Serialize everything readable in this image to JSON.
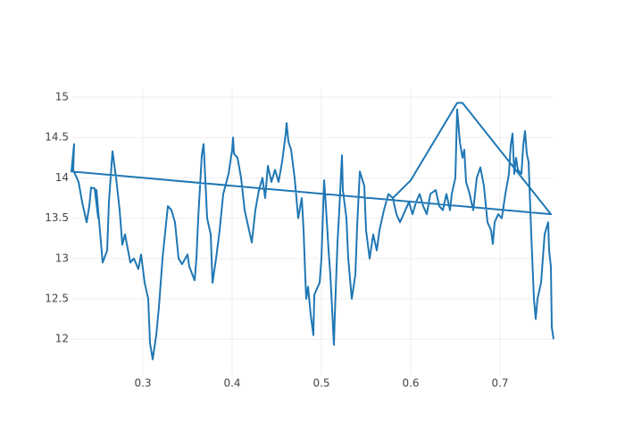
{
  "chart_data": {
    "type": "line",
    "color": "#1f77b4",
    "grid": true,
    "xlim": [
      0.22,
      0.76
    ],
    "ylim": [
      11.56,
      15.1
    ],
    "xticks": [
      0.3,
      0.4,
      0.5,
      0.6,
      0.7
    ],
    "yticks": [
      12,
      12.5,
      13,
      13.5,
      14,
      14.5,
      15
    ],
    "x": [
      0.58,
      0.6,
      0.652,
      0.658,
      0.757,
      0.22,
      0.223,
      0.222,
      0.228,
      0.232,
      0.237,
      0.24,
      0.242,
      0.246,
      0.25,
      0.248,
      0.255,
      0.26,
      0.262,
      0.266,
      0.27,
      0.274,
      0.277,
      0.28,
      0.286,
      0.29,
      0.295,
      0.298,
      0.302,
      0.306,
      0.308,
      0.311,
      0.315,
      0.318,
      0.322,
      0.328,
      0.332,
      0.336,
      0.34,
      0.344,
      0.35,
      0.352,
      0.358,
      0.36,
      0.362,
      0.366,
      0.368,
      0.369,
      0.372,
      0.376,
      0.378,
      0.382,
      0.386,
      0.39,
      0.396,
      0.4,
      0.401,
      0.402,
      0.406,
      0.41,
      0.414,
      0.418,
      0.422,
      0.426,
      0.43,
      0.434,
      0.437,
      0.44,
      0.444,
      0.448,
      0.452,
      0.456,
      0.46,
      0.461,
      0.463,
      0.466,
      0.47,
      0.474,
      0.478,
      0.48,
      0.482,
      0.483,
      0.485,
      0.488,
      0.491,
      0.492,
      0.498,
      0.5,
      0.503,
      0.505,
      0.508,
      0.51,
      0.514,
      0.515,
      0.518,
      0.52,
      0.523,
      0.524,
      0.528,
      0.53,
      0.534,
      0.538,
      0.54,
      0.543,
      0.548,
      0.55,
      0.554,
      0.558,
      0.562,
      0.565,
      0.57,
      0.575,
      0.58,
      0.584,
      0.588,
      0.594,
      0.598,
      0.602,
      0.606,
      0.61,
      0.614,
      0.618,
      0.622,
      0.628,
      0.632,
      0.636,
      0.64,
      0.644,
      0.646,
      0.65,
      0.652,
      0.655,
      0.658,
      0.66,
      0.662,
      0.666,
      0.67,
      0.674,
      0.678,
      0.682,
      0.686,
      0.69,
      0.692,
      0.694,
      0.698,
      0.702,
      0.706,
      0.71,
      0.712,
      0.714,
      0.716,
      0.718,
      0.72,
      0.724,
      0.726,
      0.728,
      0.73,
      0.732,
      0.735,
      0.738,
      0.74,
      0.742,
      0.746,
      0.75,
      0.754,
      0.755,
      0.757,
      0.758,
      0.76
    ],
    "values": [
      13.75,
      13.97,
      14.93,
      14.93,
      13.55,
      14.08,
      14.42,
      14.1,
      13.95,
      13.7,
      13.45,
      13.65,
      13.88,
      13.87,
      13.5,
      13.85,
      12.95,
      13.1,
      13.7,
      14.33,
      14.0,
      13.6,
      13.17,
      13.3,
      12.95,
      13.0,
      12.87,
      13.05,
      12.7,
      12.5,
      11.95,
      11.75,
      12.05,
      12.4,
      13.0,
      13.65,
      13.6,
      13.45,
      13.0,
      12.93,
      13.05,
      12.9,
      12.73,
      13.0,
      13.5,
      14.28,
      14.42,
      14.2,
      13.5,
      13.3,
      12.7,
      13.0,
      13.35,
      13.8,
      14.05,
      14.35,
      14.5,
      14.3,
      14.25,
      14.0,
      13.6,
      13.4,
      13.2,
      13.6,
      13.85,
      14.0,
      13.75,
      14.15,
      13.95,
      14.1,
      13.95,
      14.2,
      14.55,
      14.68,
      14.45,
      14.35,
      14.0,
      13.5,
      13.75,
      13.35,
      12.75,
      12.5,
      12.65,
      12.3,
      12.05,
      12.55,
      12.7,
      13.0,
      13.97,
      13.65,
      13.1,
      12.8,
      11.93,
      12.3,
      13.2,
      13.6,
      14.28,
      13.85,
      13.5,
      13.0,
      12.5,
      12.8,
      13.4,
      14.08,
      13.9,
      13.35,
      13.0,
      13.3,
      13.1,
      13.35,
      13.6,
      13.8,
      13.75,
      13.55,
      13.45,
      13.6,
      13.7,
      13.55,
      13.7,
      13.8,
      13.65,
      13.55,
      13.8,
      13.85,
      13.65,
      13.6,
      13.8,
      13.6,
      13.8,
      14.0,
      14.85,
      14.45,
      14.25,
      14.35,
      13.95,
      13.8,
      13.6,
      14.0,
      14.13,
      13.9,
      13.45,
      13.35,
      13.18,
      13.45,
      13.55,
      13.5,
      13.8,
      14.05,
      14.4,
      14.55,
      14.05,
      14.25,
      14.1,
      14.05,
      14.4,
      14.58,
      14.3,
      14.2,
      13.3,
      12.5,
      12.25,
      12.5,
      12.7,
      13.3,
      13.45,
      13.1,
      12.9,
      12.15,
      12.0
    ]
  }
}
